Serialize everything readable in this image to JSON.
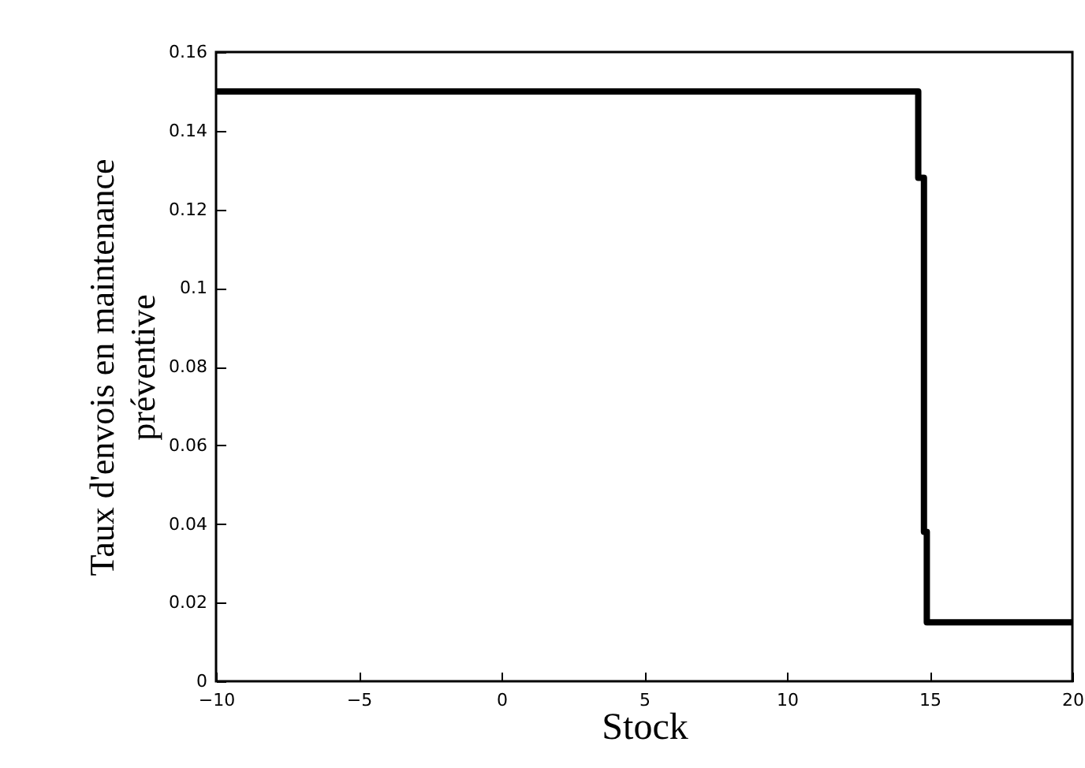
{
  "chart_data": {
    "type": "step",
    "xlabel": "Stock",
    "ylabel": "Taux d'envois en maintenance\npréventive",
    "x": [
      -10,
      14.6,
      14.8,
      14.9,
      20
    ],
    "series": [
      {
        "color": "#000000",
        "values": [
          0.15,
          0.128,
          0.038,
          0.015,
          0.015
        ]
      }
    ],
    "xlim": [
      -10,
      20
    ],
    "xticks": [
      -10,
      -5,
      0,
      5,
      10,
      15,
      20
    ],
    "ylim": [
      0,
      0.16
    ],
    "yticks": [
      0,
      0.02,
      0.04,
      0.06,
      0.08,
      0.1,
      0.12,
      0.14,
      0.16
    ],
    "grid": false
  }
}
